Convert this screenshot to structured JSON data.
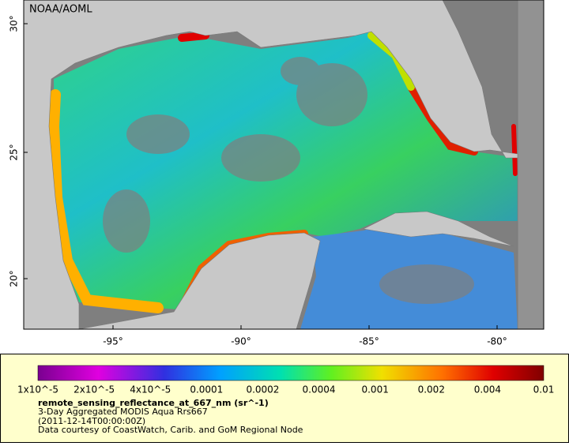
{
  "map": {
    "credit": "NOAA/AOML",
    "lat_labels": [
      "30°",
      "25°",
      "20°"
    ],
    "lon_labels": [
      "-95°",
      "-90°",
      "-85°",
      "-80°"
    ]
  },
  "legend": {
    "tick_labels": [
      "1x10^-5",
      "2x10^-5",
      "4x10^-5",
      "0.0001",
      "0.0002",
      "0.0004",
      "0.001",
      "0.002",
      "0.004",
      "0.01"
    ],
    "variable": "remote_sensing_reflectance_at_667_nm (sr^-1)",
    "lines": [
      "3-Day Aggregated MODIS Aqua Rrs667",
      "(2011-12-14T00:00:00Z)",
      "Data courtesy of CoastWatch, Carib. and GoM Regional Node"
    ]
  }
}
